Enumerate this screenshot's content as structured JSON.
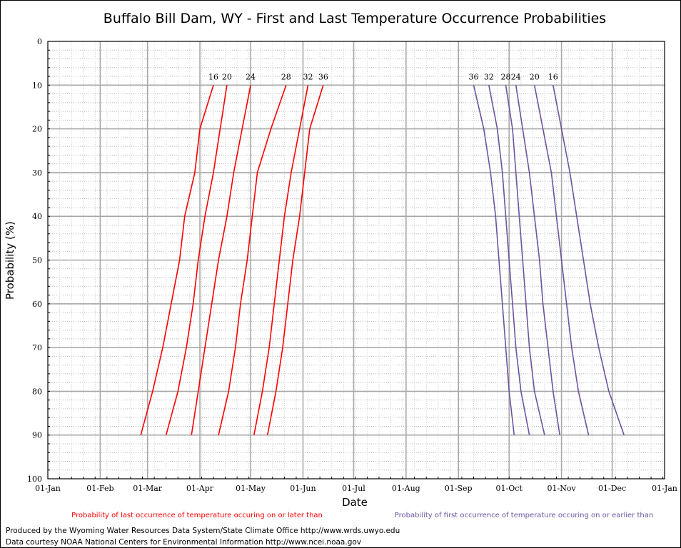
{
  "chart_data": {
    "type": "line",
    "title": "Buffalo Bill Dam, WY - First and Last Temperature Occurrence Probabilities",
    "xlabel": "Date",
    "ylabel": "Probability (%)",
    "x_ticks": [
      "01-Jan",
      "01-Feb",
      "01-Mar",
      "01-Apr",
      "01-May",
      "01-Jun",
      "01-Jul",
      "01-Aug",
      "01-Sep",
      "01-Oct",
      "01-Nov",
      "01-Dec",
      "01-Jan"
    ],
    "y_ticks": [
      0,
      10,
      20,
      30,
      40,
      50,
      60,
      70,
      80,
      90,
      100
    ],
    "ylim": [
      100,
      0
    ],
    "y_axis_inverted": true,
    "grid": true,
    "probabilities": [
      10,
      20,
      30,
      40,
      50,
      60,
      70,
      80,
      90
    ],
    "last_occurrence": {
      "legend": "Probability of last occurrence of temperature occuring on or later than",
      "color": "#ff0000",
      "series": [
        {
          "label": "16",
          "dates": [
            "04-09",
            "04-01",
            "03-29",
            "03-23",
            "03-20",
            "03-15",
            "03-10",
            "03-04",
            "02-25"
          ]
        },
        {
          "label": "20",
          "dates": [
            "04-17",
            "04-13",
            "04-09",
            "04-04",
            "03-31",
            "03-28",
            "03-24",
            "03-19",
            "03-12"
          ]
        },
        {
          "label": "24",
          "dates": [
            "05-01",
            "04-26",
            "04-21",
            "04-17",
            "04-12",
            "04-08",
            "04-04",
            "03-31",
            "03-27"
          ]
        },
        {
          "label": "28",
          "dates": [
            "05-22",
            "05-13",
            "05-05",
            "05-02",
            "04-29",
            "04-25",
            "04-22",
            "04-18",
            "04-12"
          ]
        },
        {
          "label": "32",
          "dates": [
            "06-04",
            "05-30",
            "05-25",
            "05-21",
            "05-18",
            "05-15",
            "05-12",
            "05-08",
            "05-03"
          ]
        },
        {
          "label": "36",
          "dates": [
            "06-13",
            "06-05",
            "06-02",
            "05-30",
            "05-26",
            "05-23",
            "05-20",
            "05-16",
            "05-11"
          ]
        }
      ]
    },
    "first_occurrence": {
      "legend": "Probability of first occurrence of temperature occuring on or earlier than",
      "color": "#6a55a0",
      "series": [
        {
          "label": "36",
          "dates": [
            "09-10",
            "09-16",
            "09-20",
            "09-23",
            "09-25",
            "09-27",
            "09-29",
            "10-01",
            "10-04"
          ]
        },
        {
          "label": "32",
          "dates": [
            "09-19",
            "09-24",
            "09-27",
            "09-29",
            "10-01",
            "10-03",
            "10-05",
            "10-08",
            "10-13"
          ]
        },
        {
          "label": "28",
          "dates": [
            "09-29",
            "10-03",
            "10-05",
            "10-07",
            "10-09",
            "10-11",
            "10-13",
            "10-16",
            "10-22"
          ]
        },
        {
          "label": "24",
          "dates": [
            "10-05",
            "10-09",
            "10-13",
            "10-16",
            "10-19",
            "10-21",
            "10-24",
            "10-27",
            "10-31"
          ]
        },
        {
          "label": "20",
          "dates": [
            "10-16",
            "10-21",
            "10-26",
            "10-29",
            "11-01",
            "11-04",
            "11-07",
            "11-11",
            "11-17"
          ]
        },
        {
          "label": "16",
          "dates": [
            "10-27",
            "11-01",
            "11-06",
            "11-10",
            "11-14",
            "11-18",
            "11-23",
            "11-29",
            "12-08"
          ]
        }
      ]
    }
  },
  "footer": {
    "line1": "Produced by the Wyoming Water Resources Data System/State Climate Office http://www.wrds.uwyo.edu",
    "line2": "Data courtesy NOAA National Centers for Environmental Information http://www.ncei.noaa.gov"
  }
}
